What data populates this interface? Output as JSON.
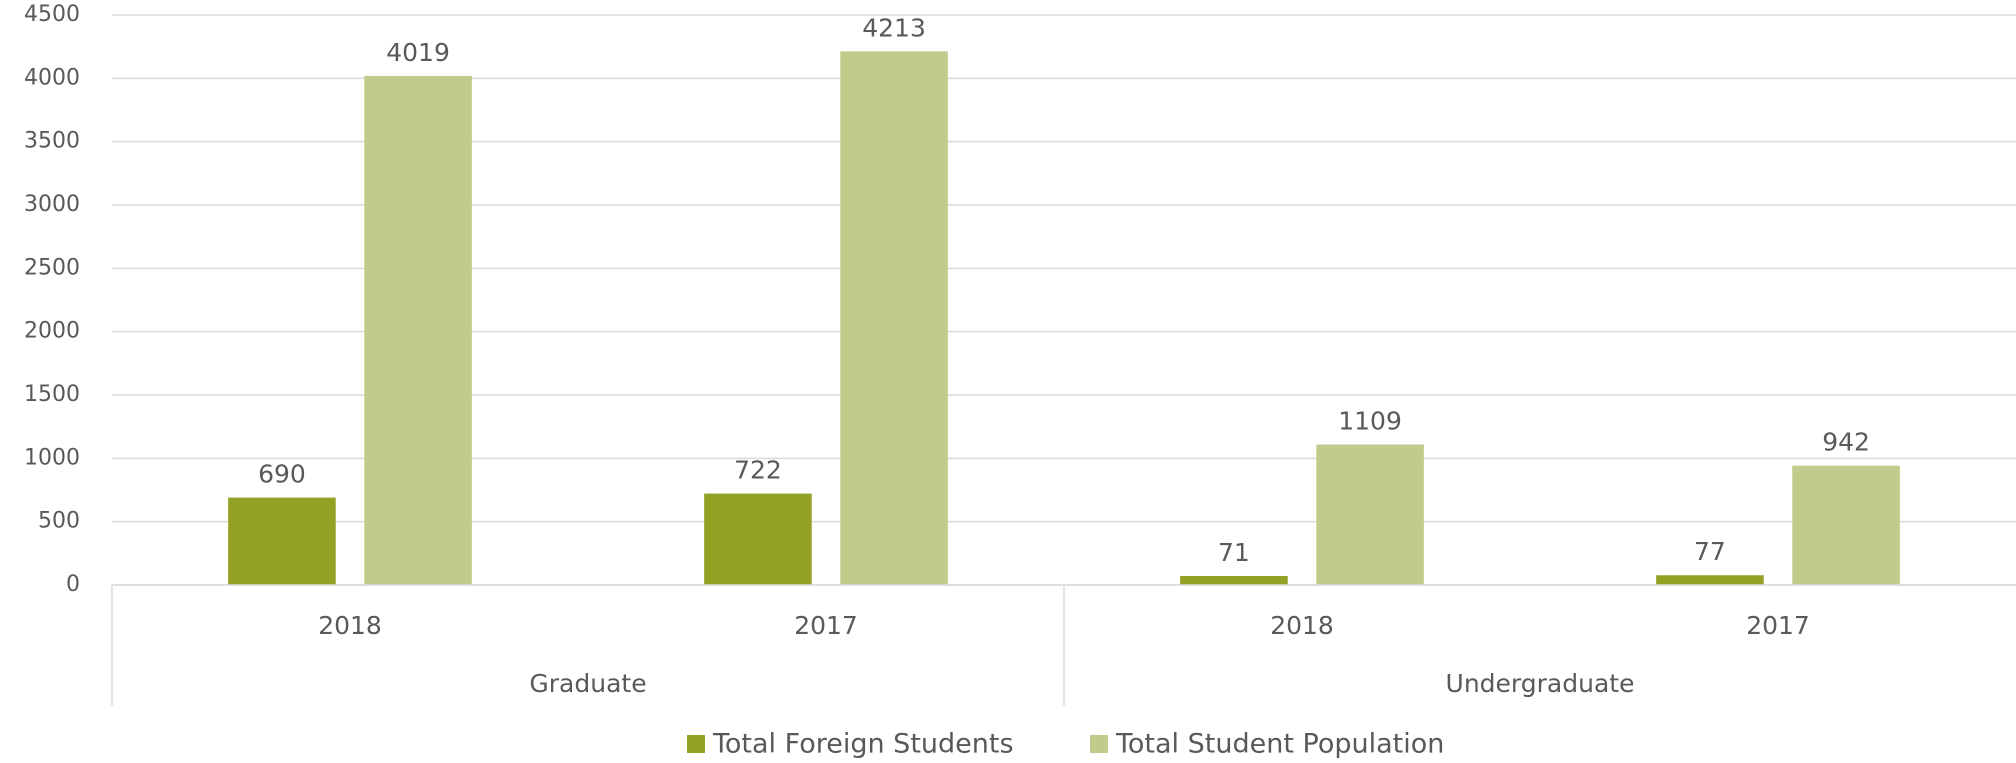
{
  "chart_data": {
    "type": "bar",
    "groups": [
      {
        "name": "Graduate",
        "categories": [
          "2018",
          "2017"
        ]
      },
      {
        "name": "Undergraduate",
        "categories": [
          "2018",
          "2017"
        ]
      }
    ],
    "series": [
      {
        "name": "Total Foreign Students",
        "color": "#93a224",
        "values": [
          690,
          722,
          71,
          77
        ]
      },
      {
        "name": "Total Student Population",
        "color": "#c0cc8c",
        "values": [
          4019,
          4213,
          1109,
          942
        ]
      }
    ],
    "ylim": [
      0,
      4500
    ],
    "yticks": [
      0,
      500,
      1000,
      1500,
      2000,
      2500,
      3000,
      3500,
      4000,
      4500
    ],
    "grid": true,
    "legend": "bottom"
  }
}
